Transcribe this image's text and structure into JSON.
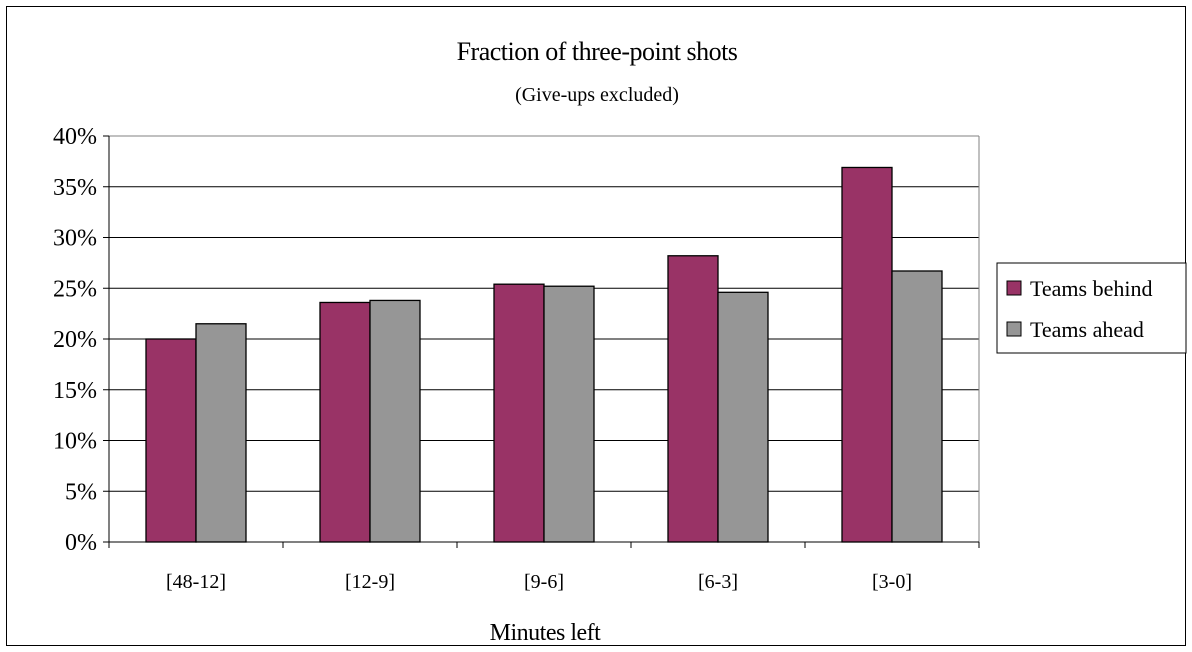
{
  "chart_data": {
    "type": "bar",
    "title": "Fraction of three-point shots",
    "subtitle": "(Give-ups excluded)",
    "xlabel": "Minutes left",
    "ylabel": "",
    "categories": [
      "[48-12]",
      "[12-9]",
      "[9-6]",
      "[6-3]",
      "[3-0]"
    ],
    "series": [
      {
        "name": "Teams behind",
        "color": "#993366",
        "values": [
          0.2,
          0.236,
          0.254,
          0.282,
          0.369
        ]
      },
      {
        "name": "Teams ahead",
        "color": "#969696",
        "values": [
          0.215,
          0.238,
          0.252,
          0.246,
          0.267
        ]
      }
    ],
    "ylim": [
      0,
      0.4
    ],
    "yticks": [
      0,
      0.05,
      0.1,
      0.15,
      0.2,
      0.25,
      0.3,
      0.35,
      0.4
    ],
    "ytick_labels": [
      "0%",
      "5%",
      "10%",
      "15%",
      "20%",
      "25%",
      "30%",
      "35%",
      "40%"
    ],
    "grid": true,
    "legend_position": "right"
  }
}
